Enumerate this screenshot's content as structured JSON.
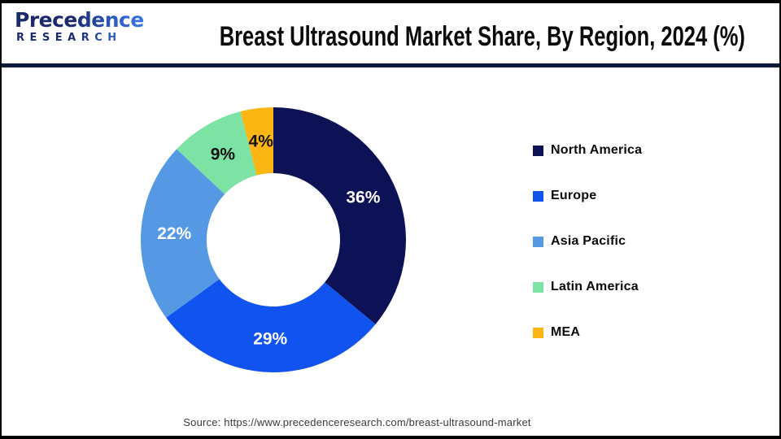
{
  "header": {
    "logo": {
      "line1": "Precedence",
      "line2": "RESEARCH"
    },
    "title": "Breast Ultrasound Market Share, By Region, 2024 (%)"
  },
  "chart_data": {
    "type": "pie",
    "subtype": "donut",
    "title": "Breast Ultrasound Market Share, By Region, 2024 (%)",
    "unit": "%",
    "direction": "clockwise",
    "start_angle_deg": 0,
    "inner_radius_ratio": 0.5,
    "legend_position": "right",
    "categories": [
      "North America",
      "Europe",
      "Asia Pacific",
      "Latin America",
      "MEA"
    ],
    "values": [
      36,
      29,
      22,
      9,
      4
    ],
    "colors": [
      "#0d1155",
      "#1153ef",
      "#5598e4",
      "#7de3a5",
      "#fbb613"
    ],
    "slice_label_colors": [
      "#ffffff",
      "#ffffff",
      "#ffffff",
      "#111111",
      "#111111"
    ],
    "slice_labels": [
      "36%",
      "29%",
      "22%",
      "9%",
      "4%"
    ]
  },
  "footer": {
    "source": "Source: https://www.precedenceresearch.com/breast-ultrasound-market"
  },
  "frame": {
    "border_color": "#000000",
    "divider_color": "#0e1a3c",
    "logo_color_start": "#1a2a6c",
    "logo_color_end": "#3f7de8"
  }
}
